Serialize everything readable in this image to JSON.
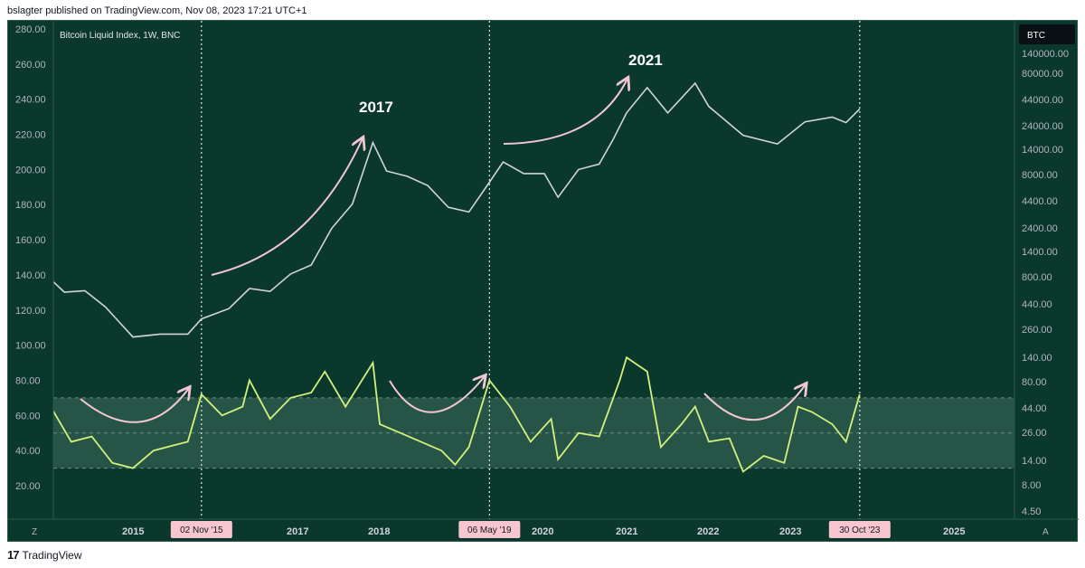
{
  "attribution": "bslagter published on TradingView.com, Nov 08, 2023 17:21 UTC+1",
  "footer": {
    "brand": "TradingView"
  },
  "chart_title": "Bitcoin Liquid Index, 1W, BNC",
  "symbol_badge": "BTC",
  "corner_buttons": {
    "left": "Z",
    "right": "A"
  },
  "colors": {
    "background": "#0b382c",
    "price": "#d1d4dc",
    "oscillator": "#d4f07c",
    "arrows": "#f3c6d3",
    "band_fill": "#2b5a4c",
    "marker_bg": "#f7c6cf"
  },
  "annotations": [
    "2017",
    "2021"
  ],
  "vertical_markers": [
    "02 Nov '15",
    "06 May '19",
    "30 Oct '23"
  ],
  "chart_data": {
    "type": "line",
    "title": "Bitcoin Liquid Index, 1W, BNC",
    "x_axis": {
      "type": "time",
      "tick_labels": [
        "2015",
        "2017",
        "2018",
        "2020",
        "2021",
        "2022",
        "2023",
        "2025"
      ]
    },
    "left_axis": {
      "range": [
        20,
        280
      ],
      "tick_labels": [
        "280.00",
        "260.00",
        "240.00",
        "220.00",
        "200.00",
        "180.00",
        "160.00",
        "140.00",
        "120.00",
        "100.00",
        "80.00",
        "60.00",
        "40.00",
        "20.00"
      ]
    },
    "right_axis": {
      "scale": "log",
      "tick_labels": [
        "140000.00",
        "80000.00",
        "44000.00",
        "24000.00",
        "14000.00",
        "8000.00",
        "4400.00",
        "2400.00",
        "1400.00",
        "800.00",
        "440.00",
        "260.00",
        "140.00",
        "80.00",
        "44.00",
        "26.00",
        "14.00",
        "8.00",
        "4.50"
      ]
    },
    "band": {
      "upper": 70,
      "middle": 50,
      "lower": 30
    },
    "series": [
      {
        "role": "price",
        "axis": "right",
        "points": [
          [
            "2014-01",
            800
          ],
          [
            "2014-03",
            600
          ],
          [
            "2014-06",
            620
          ],
          [
            "2014-09",
            430
          ],
          [
            "2015-01",
            220
          ],
          [
            "2015-05",
            235
          ],
          [
            "2015-09",
            235
          ],
          [
            "2015-11",
            330
          ],
          [
            "2016-03",
            415
          ],
          [
            "2016-06",
            650
          ],
          [
            "2016-09",
            610
          ],
          [
            "2016-12",
            900
          ],
          [
            "2017-03",
            1100
          ],
          [
            "2017-06",
            2500
          ],
          [
            "2017-09",
            4300
          ],
          [
            "2017-12",
            17000
          ],
          [
            "2018-02",
            9000
          ],
          [
            "2018-05",
            8000
          ],
          [
            "2018-08",
            6500
          ],
          [
            "2018-11",
            4000
          ],
          [
            "2019-02",
            3600
          ],
          [
            "2019-05",
            7000
          ],
          [
            "2019-07",
            11000
          ],
          [
            "2019-10",
            8500
          ],
          [
            "2020-01",
            8500
          ],
          [
            "2020-03",
            5000
          ],
          [
            "2020-06",
            9300
          ],
          [
            "2020-09",
            10500
          ],
          [
            "2020-11",
            18000
          ],
          [
            "2021-01",
            33000
          ],
          [
            "2021-04",
            58000
          ],
          [
            "2021-07",
            33000
          ],
          [
            "2021-11",
            64000
          ],
          [
            "2022-01",
            38000
          ],
          [
            "2022-06",
            20000
          ],
          [
            "2022-11",
            16500
          ],
          [
            "2023-03",
            27000
          ],
          [
            "2023-07",
            30000
          ],
          [
            "2023-09",
            26500
          ],
          [
            "2023-11",
            36000
          ]
        ]
      },
      {
        "role": "oscillator",
        "axis": "left",
        "points": [
          [
            "2014-01",
            65
          ],
          [
            "2014-04",
            45
          ],
          [
            "2014-07",
            48
          ],
          [
            "2014-10",
            33
          ],
          [
            "2015-01",
            30
          ],
          [
            "2015-04",
            40
          ],
          [
            "2015-07",
            43
          ],
          [
            "2015-09",
            45
          ],
          [
            "2015-11",
            72
          ],
          [
            "2016-02",
            60
          ],
          [
            "2016-05",
            65
          ],
          [
            "2016-06",
            80
          ],
          [
            "2016-09",
            58
          ],
          [
            "2016-12",
            70
          ],
          [
            "2017-03",
            73
          ],
          [
            "2017-05",
            85
          ],
          [
            "2017-08",
            65
          ],
          [
            "2017-12",
            90
          ],
          [
            "2018-01",
            55
          ],
          [
            "2018-04",
            50
          ],
          [
            "2018-07",
            45
          ],
          [
            "2018-10",
            40
          ],
          [
            "2018-12",
            32
          ],
          [
            "2019-02",
            42
          ],
          [
            "2019-05",
            80
          ],
          [
            "2019-08",
            65
          ],
          [
            "2019-11",
            45
          ],
          [
            "2020-02",
            58
          ],
          [
            "2020-03",
            35
          ],
          [
            "2020-06",
            50
          ],
          [
            "2020-09",
            48
          ],
          [
            "2020-12",
            80
          ],
          [
            "2021-01",
            93
          ],
          [
            "2021-04",
            85
          ],
          [
            "2021-06",
            42
          ],
          [
            "2021-09",
            55
          ],
          [
            "2021-11",
            65
          ],
          [
            "2022-01",
            45
          ],
          [
            "2022-04",
            47
          ],
          [
            "2022-06",
            28
          ],
          [
            "2022-09",
            37
          ],
          [
            "2022-12",
            33
          ],
          [
            "2023-02",
            65
          ],
          [
            "2023-04",
            62
          ],
          [
            "2023-07",
            55
          ],
          [
            "2023-09",
            45
          ],
          [
            "2023-11",
            72
          ]
        ]
      }
    ]
  }
}
